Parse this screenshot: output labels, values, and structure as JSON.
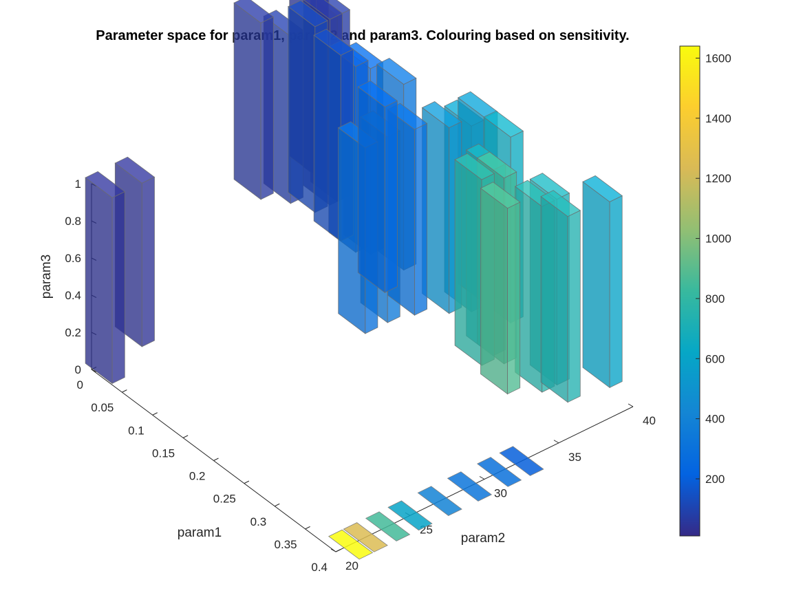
{
  "chart_data": {
    "type": "bar3d",
    "title": "Parameter space for param1, param2 and param3. Colouring based on sensitivity.",
    "xlabel": "param1",
    "ylabel": "param2",
    "zlabel": "param3",
    "xlim": [
      0,
      0.4
    ],
    "ylim": [
      20,
      40
    ],
    "zlim": [
      0,
      1
    ],
    "x_ticks": [
      "0",
      "0.05",
      "0.1",
      "0.15",
      "0.2",
      "0.25",
      "0.3",
      "0.35",
      "0.4"
    ],
    "y_ticks": [
      "20",
      "25",
      "30",
      "35",
      "40"
    ],
    "z_ticks": [
      "0",
      "0.2",
      "0.4",
      "0.6",
      "0.8",
      "1"
    ],
    "colorbar": {
      "colormap": "parula",
      "range": [
        10,
        1640
      ],
      "ticks": [
        "200",
        "400",
        "600",
        "800",
        "1000",
        "1200",
        "1400",
        "1600"
      ]
    },
    "bars": [
      {
        "param1": 0.01,
        "param2": 20.5,
        "param3_low": 0.0,
        "param3_high": 1.0,
        "sensitivity": 40
      },
      {
        "param1": 0.01,
        "param2": 22.5,
        "param3_low": 0.12,
        "param3_high": 1.0,
        "sensitivity": 40
      },
      {
        "param1": 0.01,
        "param2": 30.5,
        "param3_low": 0.6,
        "param3_high": 1.55,
        "sensitivity": 60
      },
      {
        "param1": 0.01,
        "param2": 32.5,
        "param3_low": 0.5,
        "param3_high": 1.4,
        "sensitivity": 80
      },
      {
        "param1": 0.05,
        "param2": 32.5,
        "param3_low": 0.55,
        "param3_high": 1.55,
        "sensitivity": 120
      },
      {
        "param1": 0.04,
        "param2": 33.0,
        "param3_low": 0.7,
        "param3_high": 1.75,
        "sensitivity": 50
      },
      {
        "param1": 0.05,
        "param2": 33.5,
        "param3_low": 0.55,
        "param3_high": 1.55,
        "sensitivity": 60
      },
      {
        "param1": 0.05,
        "param2": 34.0,
        "param3_low": 0.55,
        "param3_high": 1.55,
        "sensitivity": 70
      },
      {
        "param1": 0.08,
        "param2": 33.0,
        "param3_low": 0.45,
        "param3_high": 1.45,
        "sensitivity": 130
      },
      {
        "param1": 0.08,
        "param2": 34.0,
        "param3_low": 0.35,
        "param3_high": 1.35,
        "sensitivity": 200
      },
      {
        "param1": 0.08,
        "param2": 35.0,
        "param3_low": 0.3,
        "param3_high": 1.3,
        "sensitivity": 250
      },
      {
        "param1": 0.11,
        "param2": 36.0,
        "param3_low": 0.25,
        "param3_high": 1.25,
        "sensitivity": 330
      },
      {
        "param1": 0.12,
        "param2": 33.0,
        "param3_low": 0.05,
        "param3_high": 1.05,
        "sensitivity": 300
      },
      {
        "param1": 0.12,
        "param2": 34.5,
        "param3_low": 0.05,
        "param3_high": 1.05,
        "sensitivity": 350
      },
      {
        "param1": 0.14,
        "param2": 33.5,
        "param3_low": 0.3,
        "param3_high": 1.3,
        "sensitivity": 250
      },
      {
        "param1": 0.14,
        "param2": 35.5,
        "param3_low": 0.1,
        "param3_high": 1.1,
        "sensitivity": 300
      },
      {
        "param1": 0.16,
        "param2": 37.0,
        "param3_low": 0.1,
        "param3_high": 1.1,
        "sensitivity": 500
      },
      {
        "param1": 0.16,
        "param2": 38.5,
        "param3_low": 0.05,
        "param3_high": 1.05,
        "sensitivity": 580
      },
      {
        "param1": 0.17,
        "param2": 39.0,
        "param3_low": 0.1,
        "param3_high": 1.1,
        "sensitivity": 550
      },
      {
        "param1": 0.2,
        "param2": 39.5,
        "param3_low": 0.05,
        "param3_high": 1.05,
        "sensitivity": 650
      },
      {
        "param1": 0.25,
        "param2": 35.5,
        "param3_low": 0.1,
        "param3_high": 1.1,
        "sensitivity": 780
      },
      {
        "param1": 0.22,
        "param2": 37.5,
        "param3_low": 0.0,
        "param3_high": 1.0,
        "sensitivity": 700
      },
      {
        "param1": 0.25,
        "param2": 37.0,
        "param3_low": 0.05,
        "param3_high": 1.05,
        "sensitivity": 850
      },
      {
        "param1": 0.28,
        "param2": 36.0,
        "param3_low": 0.0,
        "param3_high": 1.0,
        "sensitivity": 880
      },
      {
        "param1": 0.3,
        "param2": 37.5,
        "param3_low": 0.0,
        "param3_high": 1.0,
        "sensitivity": 760
      },
      {
        "param1": 0.3,
        "param2": 38.5,
        "param3_low": 0.0,
        "param3_high": 1.0,
        "sensitivity": 700
      },
      {
        "param1": 0.33,
        "param2": 38.0,
        "param3_low": 0.0,
        "param3_high": 1.0,
        "sensitivity": 740
      },
      {
        "param1": 0.35,
        "param2": 40.0,
        "param3_low": 0.05,
        "param3_high": 1.05,
        "sensitivity": 600
      }
    ],
    "floor_tiles": [
      {
        "param1": 0.4,
        "param2": 21.0,
        "sensitivity": 1640
      },
      {
        "param1": 0.4,
        "param2": 22.0,
        "sensitivity": 1250
      },
      {
        "param1": 0.4,
        "param2": 23.5,
        "sensitivity": 850
      },
      {
        "param1": 0.4,
        "param2": 25.0,
        "sensitivity": 600
      },
      {
        "param1": 0.4,
        "param2": 27.0,
        "sensitivity": 400
      },
      {
        "param1": 0.4,
        "param2": 29.0,
        "sensitivity": 330
      },
      {
        "param1": 0.4,
        "param2": 31.0,
        "sensitivity": 300
      },
      {
        "param1": 0.4,
        "param2": 32.5,
        "sensitivity": 200
      }
    ]
  }
}
